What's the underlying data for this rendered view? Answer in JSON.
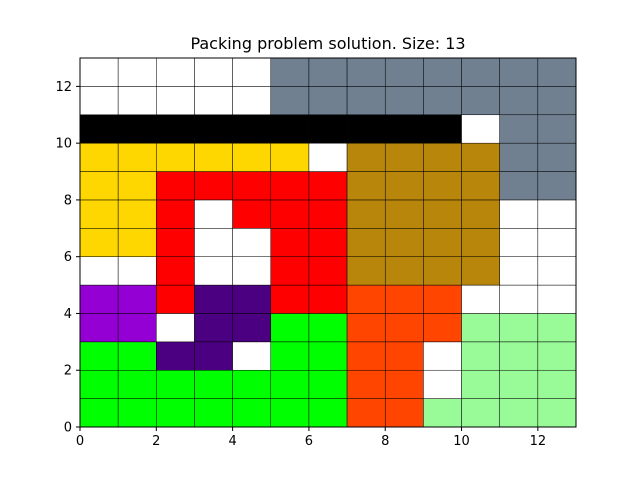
{
  "chart_data": {
    "type": "heatmap",
    "title": "Packing problem solution. Size: 13",
    "xlabel": "",
    "ylabel": "",
    "xlim": [
      0,
      13
    ],
    "ylim": [
      0,
      13
    ],
    "x_ticks": [
      0,
      2,
      4,
      6,
      8,
      10,
      12
    ],
    "y_ticks": [
      0,
      2,
      4,
      6,
      8,
      10,
      12
    ],
    "grid": "unit cells outlined in black",
    "empty_color": "#ffffff",
    "cell_edge_color": "#000000",
    "pieces": [
      {
        "color": "#00ff00",
        "cells": [
          [
            0,
            0
          ],
          [
            1,
            0
          ],
          [
            2,
            0
          ],
          [
            3,
            0
          ],
          [
            4,
            0
          ],
          [
            5,
            0
          ],
          [
            6,
            0
          ],
          [
            0,
            1
          ],
          [
            1,
            1
          ],
          [
            2,
            1
          ],
          [
            3,
            1
          ],
          [
            4,
            1
          ],
          [
            5,
            1
          ],
          [
            6,
            1
          ],
          [
            0,
            2
          ],
          [
            1,
            2
          ],
          [
            5,
            2
          ],
          [
            6,
            2
          ],
          [
            5,
            3
          ],
          [
            6,
            3
          ]
        ]
      },
      {
        "color": "#ff4500",
        "cells": [
          [
            7,
            0
          ],
          [
            8,
            0
          ],
          [
            7,
            1
          ],
          [
            8,
            1
          ],
          [
            7,
            2
          ],
          [
            8,
            2
          ],
          [
            7,
            3
          ],
          [
            8,
            3
          ],
          [
            9,
            3
          ],
          [
            7,
            4
          ],
          [
            8,
            4
          ],
          [
            9,
            4
          ]
        ]
      },
      {
        "color": "#98fb98",
        "cells": [
          [
            9,
            0
          ],
          [
            10,
            0
          ],
          [
            11,
            0
          ],
          [
            12,
            0
          ],
          [
            10,
            1
          ],
          [
            11,
            1
          ],
          [
            12,
            1
          ],
          [
            10,
            2
          ],
          [
            11,
            2
          ],
          [
            12,
            2
          ],
          [
            10,
            3
          ],
          [
            11,
            3
          ],
          [
            12,
            3
          ]
        ]
      },
      {
        "color": "#4b0082",
        "cells": [
          [
            2,
            2
          ],
          [
            3,
            2
          ],
          [
            3,
            3
          ],
          [
            4,
            3
          ],
          [
            3,
            4
          ],
          [
            4,
            4
          ]
        ]
      },
      {
        "color": "#9400d3",
        "cells": [
          [
            0,
            3
          ],
          [
            1,
            3
          ],
          [
            0,
            4
          ],
          [
            1,
            4
          ]
        ]
      },
      {
        "color": "#ff0000",
        "cells": [
          [
            2,
            4
          ],
          [
            5,
            4
          ],
          [
            6,
            4
          ],
          [
            2,
            5
          ],
          [
            5,
            5
          ],
          [
            6,
            5
          ],
          [
            2,
            6
          ],
          [
            5,
            6
          ],
          [
            6,
            6
          ],
          [
            2,
            7
          ],
          [
            4,
            7
          ],
          [
            5,
            7
          ],
          [
            6,
            7
          ],
          [
            2,
            8
          ],
          [
            3,
            8
          ],
          [
            4,
            8
          ],
          [
            5,
            8
          ],
          [
            6,
            8
          ]
        ]
      },
      {
        "color": "#b8860b",
        "cells": [
          [
            7,
            5
          ],
          [
            8,
            5
          ],
          [
            9,
            5
          ],
          [
            10,
            5
          ],
          [
            7,
            6
          ],
          [
            8,
            6
          ],
          [
            9,
            6
          ],
          [
            10,
            6
          ],
          [
            7,
            7
          ],
          [
            8,
            7
          ],
          [
            9,
            7
          ],
          [
            10,
            7
          ],
          [
            7,
            8
          ],
          [
            8,
            8
          ],
          [
            9,
            8
          ],
          [
            10,
            8
          ],
          [
            7,
            9
          ],
          [
            8,
            9
          ],
          [
            9,
            9
          ],
          [
            10,
            9
          ]
        ]
      },
      {
        "color": "#ffd700",
        "cells": [
          [
            0,
            6
          ],
          [
            1,
            6
          ],
          [
            0,
            7
          ],
          [
            1,
            7
          ],
          [
            0,
            8
          ],
          [
            1,
            8
          ],
          [
            0,
            9
          ],
          [
            1,
            9
          ],
          [
            2,
            9
          ],
          [
            3,
            9
          ],
          [
            4,
            9
          ],
          [
            5,
            9
          ]
        ]
      },
      {
        "color": "#000000",
        "cells": [
          [
            0,
            10
          ],
          [
            1,
            10
          ],
          [
            2,
            10
          ],
          [
            3,
            10
          ],
          [
            4,
            10
          ],
          [
            5,
            10
          ],
          [
            6,
            10
          ],
          [
            7,
            10
          ],
          [
            8,
            10
          ],
          [
            9,
            10
          ]
        ]
      },
      {
        "color": "#708090",
        "cells": [
          [
            5,
            11
          ],
          [
            6,
            11
          ],
          [
            7,
            11
          ],
          [
            8,
            11
          ],
          [
            9,
            11
          ],
          [
            10,
            11
          ],
          [
            11,
            11
          ],
          [
            12,
            11
          ],
          [
            5,
            12
          ],
          [
            6,
            12
          ],
          [
            7,
            12
          ],
          [
            8,
            12
          ],
          [
            9,
            12
          ],
          [
            10,
            12
          ],
          [
            11,
            12
          ],
          [
            12,
            12
          ],
          [
            11,
            8
          ],
          [
            12,
            8
          ],
          [
            11,
            9
          ],
          [
            12,
            9
          ],
          [
            11,
            10
          ],
          [
            12,
            10
          ]
        ]
      }
    ]
  }
}
